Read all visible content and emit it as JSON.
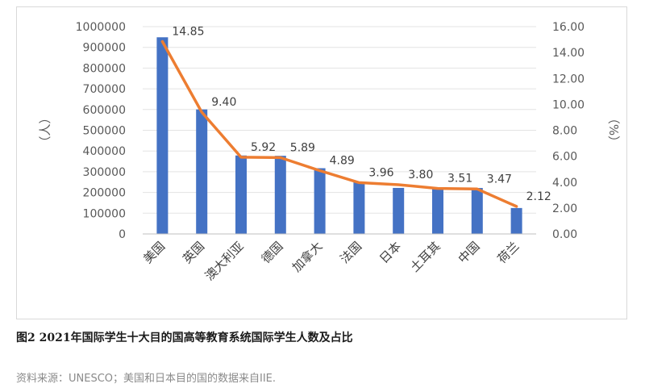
{
  "chart_data": {
    "type": "bar",
    "categories": [
      "美国",
      "英国",
      "澳大利亚",
      "德国",
      "加拿大",
      "法国",
      "日本",
      "土耳其",
      "中国",
      "荷兰"
    ],
    "series": [
      {
        "axis": "left",
        "type": "bar",
        "color": "#4472C4",
        "values": [
          948519,
          600589,
          378439,
          376895,
          317000,
          252444,
          222000,
          224000,
          221600,
          125000
        ]
      },
      {
        "axis": "right",
        "type": "line",
        "color": "#ED7D31",
        "values": [
          14.85,
          9.4,
          5.92,
          5.89,
          4.89,
          3.96,
          3.8,
          3.51,
          3.47,
          2.12
        ],
        "labels": [
          "14.85",
          "9.40",
          "5.92",
          "5.89",
          "4.89",
          "3.96",
          "3.80",
          "3.51",
          "3.47",
          "2.12"
        ]
      }
    ],
    "left_axis": {
      "title": "（人）",
      "ylim": [
        0,
        1000000
      ],
      "ticks": [
        "0",
        "100000",
        "200000",
        "300000",
        "400000",
        "500000",
        "600000",
        "700000",
        "800000",
        "900000",
        "1000000"
      ]
    },
    "right_axis": {
      "title": "（%）",
      "ylim": [
        0,
        16
      ],
      "ticks": [
        "0.00",
        "2.00",
        "4.00",
        "6.00",
        "8.00",
        "10.00",
        "12.00",
        "14.00",
        "16.00"
      ]
    },
    "grid": true
  },
  "caption": "图2 2021年国际学生十大目的国高等教育系统国际学生人数及占比",
  "source": "资料来源：UNESCO；美国和日本目的国的数据来自IIE."
}
